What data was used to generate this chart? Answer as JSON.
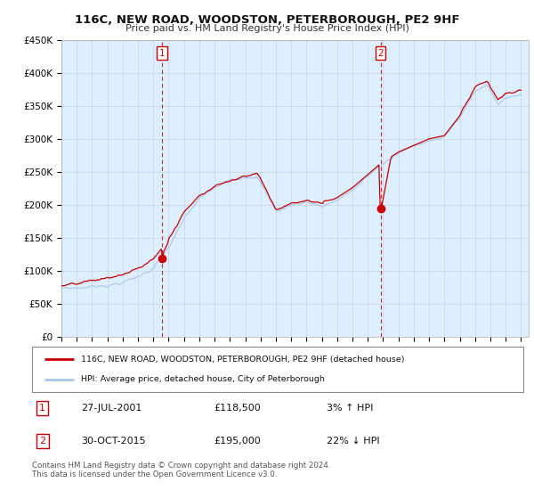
{
  "title": "116C, NEW ROAD, WOODSTON, PETERBOROUGH, PE2 9HF",
  "subtitle": "Price paid vs. HM Land Registry's House Price Index (HPI)",
  "ylabel_ticks": [
    "£0",
    "£50K",
    "£100K",
    "£150K",
    "£200K",
    "£250K",
    "£300K",
    "£350K",
    "£400K",
    "£450K"
  ],
  "ylim": [
    0,
    450000
  ],
  "xlim_start": 1995.0,
  "xlim_end": 2025.5,
  "hpi_color": "#a8c8e8",
  "price_color": "#cc0000",
  "dashed_color": "#cc0000",
  "plot_bg_color": "#ddeeff",
  "sale1_x": 2001.57,
  "sale1_y": 118500,
  "sale1_label": "1",
  "sale2_x": 2015.83,
  "sale2_y": 195000,
  "sale2_label": "2",
  "legend_line1": "116C, NEW ROAD, WOODSTON, PETERBOROUGH, PE2 9HF (detached house)",
  "legend_line2": "HPI: Average price, detached house, City of Peterborough",
  "annotation1_box": "1",
  "annotation1_date": "27-JUL-2001",
  "annotation1_price": "£118,500",
  "annotation1_hpi": "3% ↑ HPI",
  "annotation2_box": "2",
  "annotation2_date": "30-OCT-2015",
  "annotation2_price": "£195,000",
  "annotation2_hpi": "22% ↓ HPI",
  "footnote": "Contains HM Land Registry data © Crown copyright and database right 2024.\nThis data is licensed under the Open Government Licence v3.0.",
  "background_color": "#ffffff",
  "grid_color": "#c8d8e8"
}
